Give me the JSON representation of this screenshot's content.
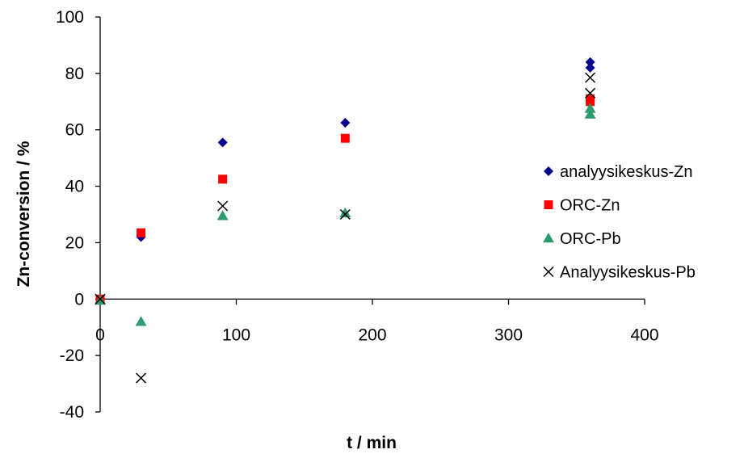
{
  "chart_data": {
    "type": "scatter",
    "title": "",
    "xlabel": "t / min",
    "ylabel": "Zn-conversion / %",
    "xlim": [
      0,
      400
    ],
    "ylim": [
      -40,
      100
    ],
    "x_ticks": [
      0,
      100,
      200,
      300,
      400
    ],
    "y_ticks": [
      -40,
      -20,
      0,
      20,
      40,
      60,
      80,
      100
    ],
    "grid": false,
    "legend": "right",
    "series": [
      {
        "name": "analyysikeskus-Zn",
        "marker": "diamond",
        "color": "#00008B",
        "points": [
          [
            0,
            0
          ],
          [
            30,
            22
          ],
          [
            90,
            55.5
          ],
          [
            180,
            62.5
          ],
          [
            360,
            84
          ],
          [
            360,
            82
          ]
        ]
      },
      {
        "name": "ORC-Zn",
        "marker": "square",
        "color": "#FF0000",
        "points": [
          [
            0,
            0
          ],
          [
            30,
            23.5
          ],
          [
            90,
            42.5
          ],
          [
            180,
            57
          ],
          [
            360,
            71
          ],
          [
            360,
            70
          ]
        ]
      },
      {
        "name": "ORC-Pb",
        "marker": "triangle",
        "color": "#2E9B6F",
        "points": [
          [
            0,
            -0.5
          ],
          [
            30,
            -8
          ],
          [
            90,
            29.5
          ],
          [
            180,
            30.5
          ],
          [
            360,
            67.5
          ],
          [
            360,
            65.5
          ]
        ]
      },
      {
        "name": "Analyysikeskus-Pb",
        "marker": "x",
        "color": "#000000",
        "points": [
          [
            0,
            0
          ],
          [
            30,
            -28
          ],
          [
            90,
            33
          ],
          [
            180,
            30
          ],
          [
            360,
            78.5
          ],
          [
            360,
            73
          ]
        ]
      }
    ]
  }
}
